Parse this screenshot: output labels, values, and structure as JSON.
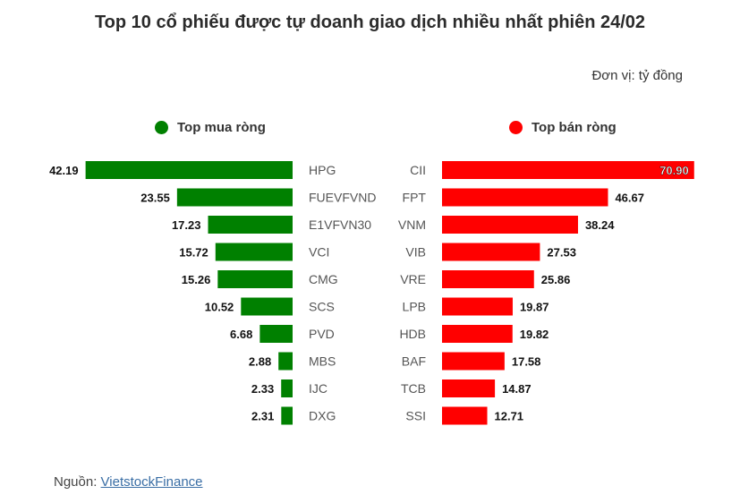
{
  "title": "Top 10 cổ phiếu được tự doanh giao dịch nhiều nhất phiên 24/02",
  "unit": "Đơn vị: tỷ đồng",
  "source_label": "Nguồn:",
  "source_link": "VietstockFinance",
  "colors": {
    "buy": "#008000",
    "sell": "#ff0000"
  },
  "chart_data": [
    {
      "type": "bar",
      "orientation": "horizontal",
      "title": "Top mua ròng",
      "categories": [
        "HPG",
        "FUEVFVND",
        "E1VFVN30",
        "VCI",
        "CMG",
        "SCS",
        "PVD",
        "MBS",
        "IJC",
        "DXG"
      ],
      "values": [
        42.19,
        23.55,
        17.23,
        15.72,
        15.26,
        10.52,
        6.68,
        2.88,
        2.33,
        2.31
      ],
      "direction": "left",
      "grid": false
    },
    {
      "type": "bar",
      "orientation": "horizontal",
      "title": "Top bán ròng",
      "categories": [
        "CII",
        "FPT",
        "VNM",
        "VIB",
        "VRE",
        "LPB",
        "HDB",
        "BAF",
        "TCB",
        "SSI"
      ],
      "values": [
        70.9,
        46.67,
        38.24,
        27.53,
        25.86,
        19.87,
        19.82,
        17.58,
        14.87,
        12.71
      ],
      "direction": "right",
      "grid": false
    }
  ]
}
